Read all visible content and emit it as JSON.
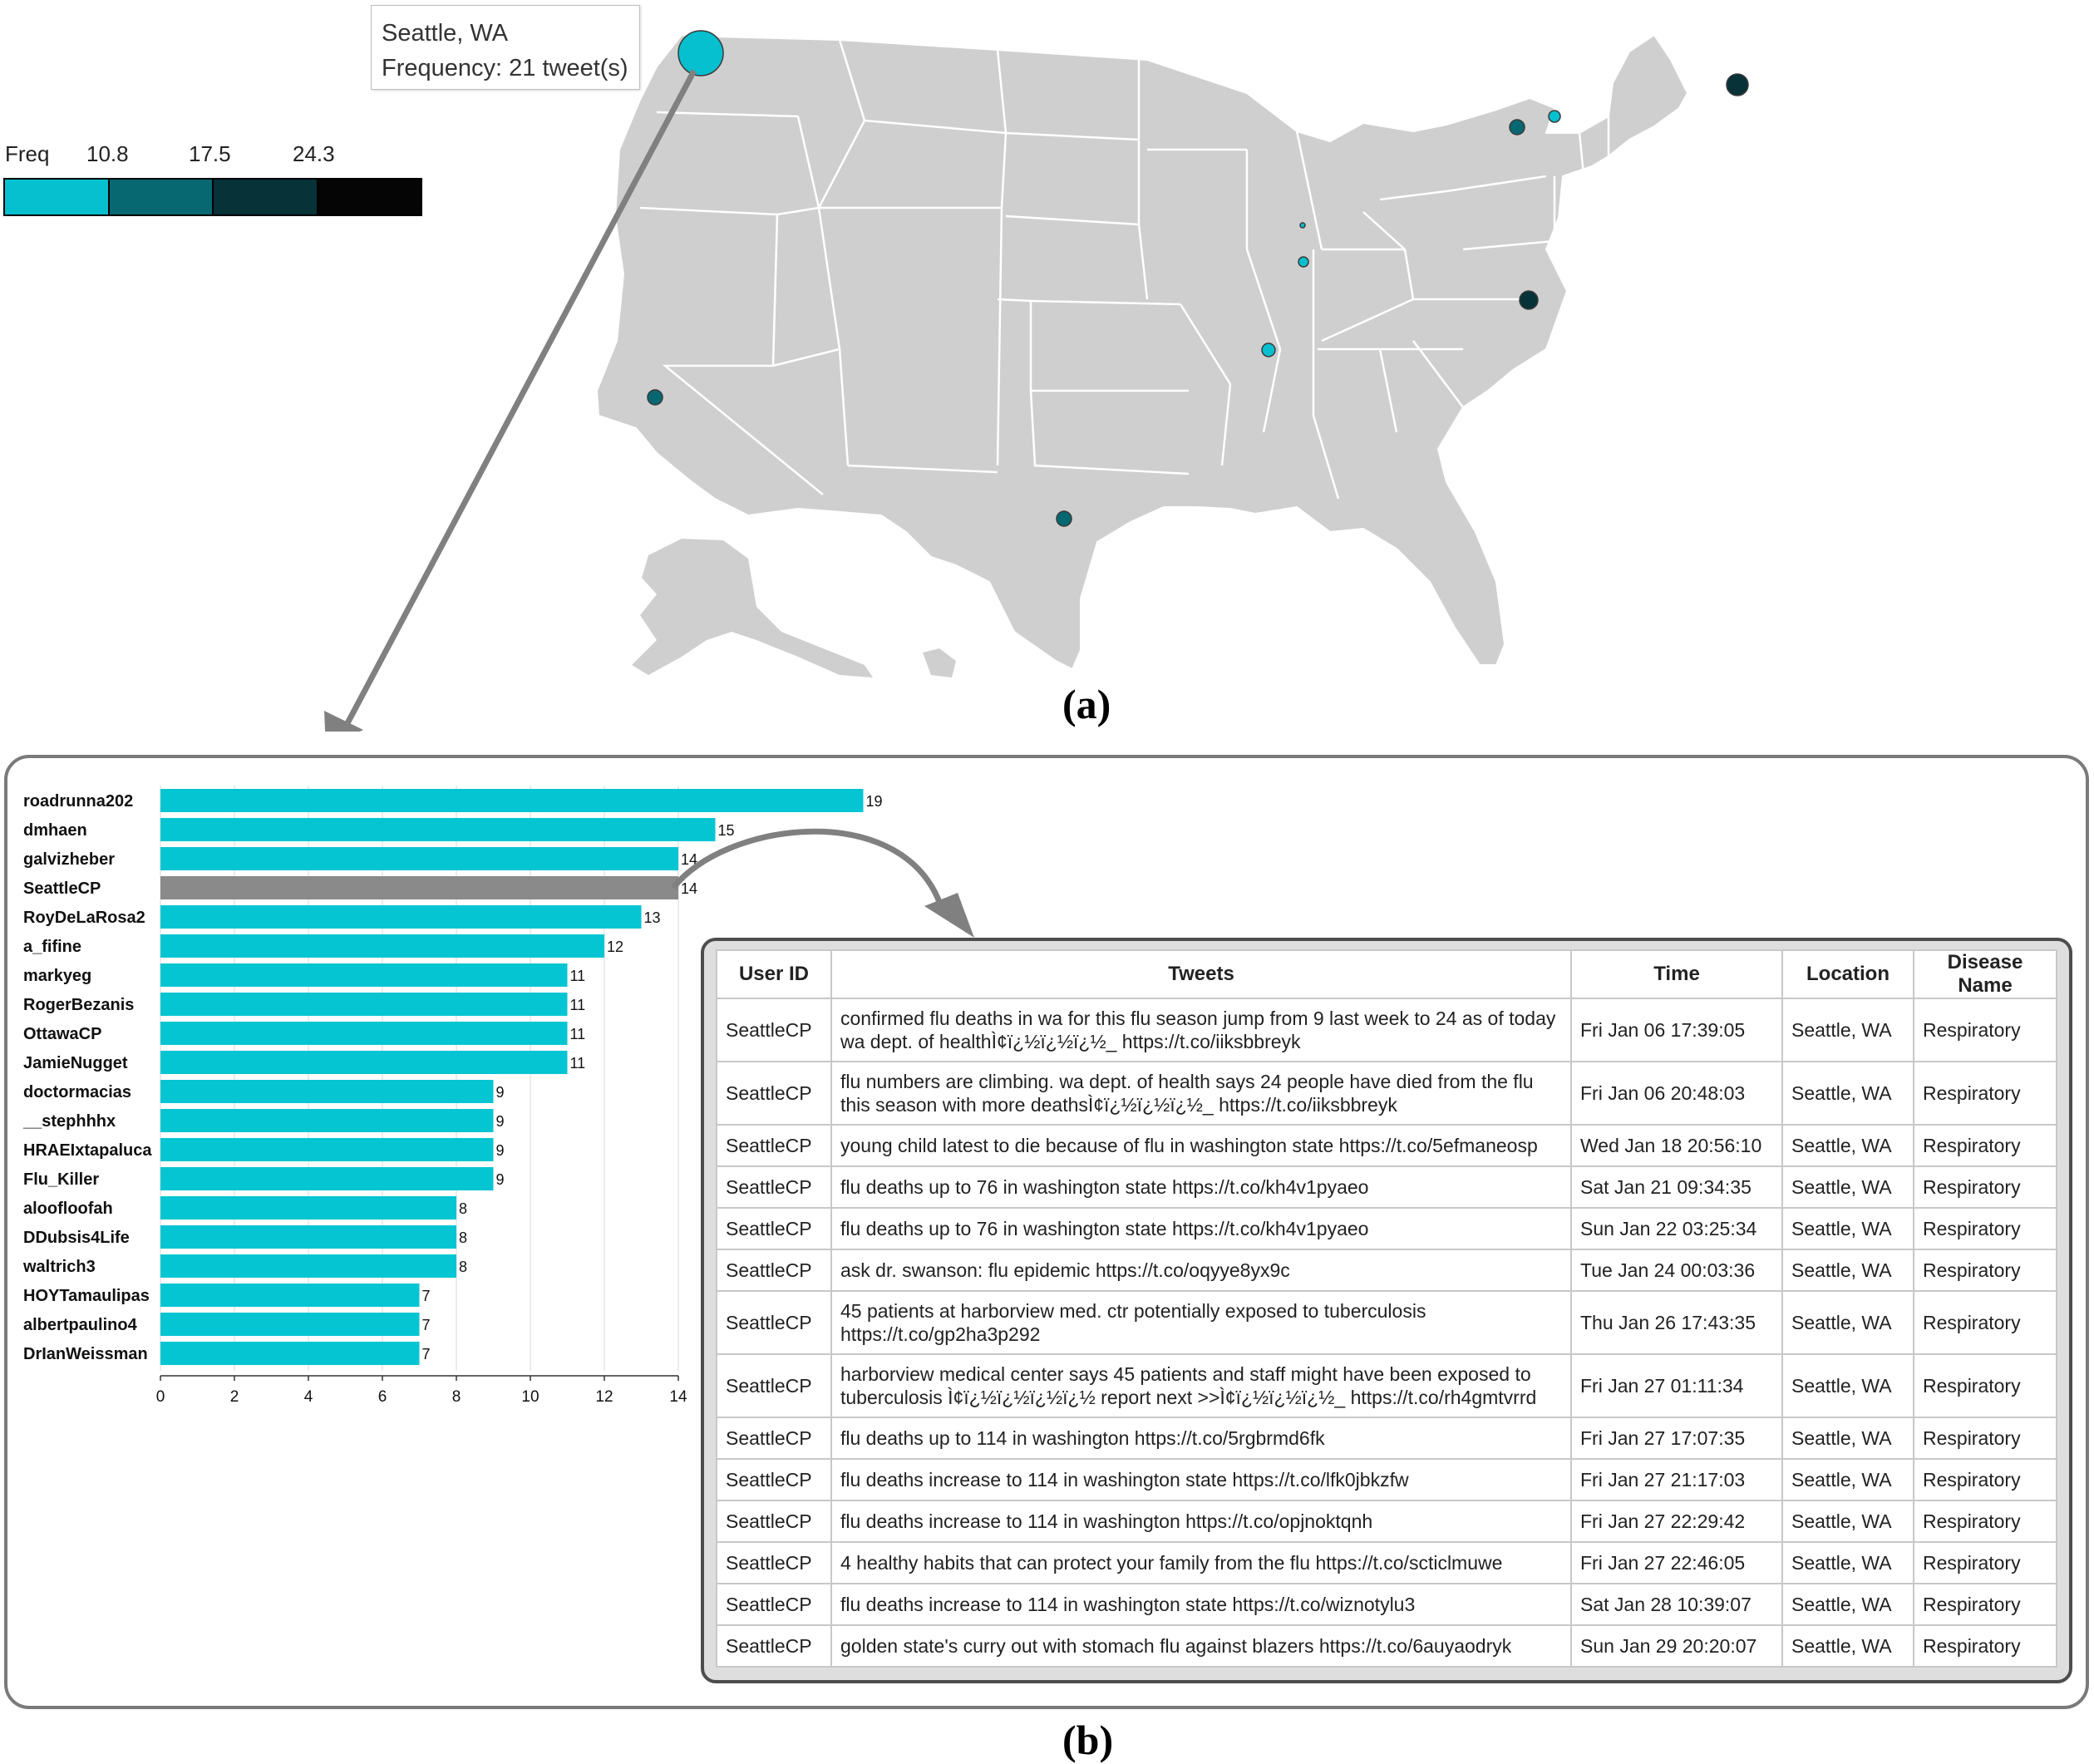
{
  "figure_labels": {
    "a": "(a)",
    "b": "(b)"
  },
  "tooltip": {
    "location": "Seattle, WA",
    "frequency": "Frequency: 21 tweet(s)"
  },
  "legend": {
    "title": "Freq",
    "ticks": [
      "10.8",
      "17.5",
      "24.3"
    ],
    "colors": [
      "#06bfcf",
      "#076871",
      "#073238",
      "#050505"
    ]
  },
  "map": {
    "land_color": "#cfcfcf",
    "border_color": "#ffffff",
    "markers": [
      {
        "name": "Seattle, WA",
        "level": 1,
        "highlighted": true
      },
      {
        "name": "Los Angeles area",
        "level": 2
      },
      {
        "name": "Texas",
        "level": 2
      },
      {
        "name": "St. Louis area",
        "level": 1
      },
      {
        "name": "Chicago area",
        "level": 1
      },
      {
        "name": "Milwaukee area",
        "level": 1
      },
      {
        "name": "Washington DC area",
        "level": 3
      },
      {
        "name": "New York (west)",
        "level": 2
      },
      {
        "name": "New York (north)",
        "level": 1
      },
      {
        "name": "Atlantic",
        "level": 3
      }
    ]
  },
  "chart_data": {
    "type": "bar",
    "orientation": "horizontal",
    "categories": [
      "roadrunna202",
      "dmhaen",
      "galvizheber",
      "SeattleCP",
      "RoyDeLaRosa2",
      "a_fifine",
      "markyeg",
      "RogerBezanis",
      "OttawaCP",
      "JamieNugget",
      "doctormacias",
      "__stephhhx",
      "HRAEIxtapaluca",
      "Flu_Killer",
      "aloofloofah",
      "DDubsis4Life",
      "waltrich3",
      "HOYTamaulipas",
      "albertpaulino4",
      "DrIanWeissman"
    ],
    "values": [
      19,
      15,
      14,
      14,
      13,
      12,
      11,
      11,
      11,
      11,
      9,
      9,
      9,
      9,
      8,
      8,
      8,
      7,
      7,
      7
    ],
    "data_labels": [
      "19",
      "15",
      "14",
      "14",
      "13",
      "12",
      "11",
      "11",
      "11",
      "11",
      "9",
      "9",
      "9",
      "9",
      "8",
      "8",
      "8",
      "7",
      "7",
      "7"
    ],
    "highlighted": "SeattleCP",
    "bar_color": "#06c5d2",
    "highlight_color": "#8a8a8a",
    "x_ticks": [
      0,
      2,
      4,
      6,
      8,
      10,
      12,
      14
    ],
    "x_tick_labels": [
      "0",
      "2",
      "4",
      "6",
      "8",
      "10",
      "12",
      "14"
    ],
    "xlim": [
      0,
      19
    ],
    "grid": true
  },
  "table": {
    "headers": [
      "User ID",
      "Tweets",
      "Time",
      "Location",
      "Disease Name"
    ],
    "rows": [
      {
        "user": "SeattleCP",
        "tweet": "confirmed flu deaths in wa for this flu season jump from 9 last week to 24 as of today wa dept. of healthÌ¢ï¿½ï¿½ï¿½_ https://t.co/iiksbbreyk",
        "time": "Fri Jan 06 17:39:05",
        "location": "Seattle, WA",
        "disease": "Respiratory"
      },
      {
        "user": "SeattleCP",
        "tweet": "flu numbers are climbing. wa dept. of health says 24 people have died from the flu this season with more deathsÌ¢ï¿½ï¿½ï¿½_ https://t.co/iiksbbreyk",
        "time": "Fri Jan 06 20:48:03",
        "location": "Seattle, WA",
        "disease": "Respiratory"
      },
      {
        "user": "SeattleCP",
        "tweet": "young child latest to die because of flu in washington state https://t.co/5efmaneosp",
        "time": "Wed Jan 18 20:56:10",
        "location": "Seattle, WA",
        "disease": "Respiratory"
      },
      {
        "user": "SeattleCP",
        "tweet": "flu deaths up to 76 in washington state https://t.co/kh4v1pyaeo",
        "time": "Sat Jan 21 09:34:35",
        "location": "Seattle, WA",
        "disease": "Respiratory"
      },
      {
        "user": "SeattleCP",
        "tweet": "flu deaths up to 76 in washington state https://t.co/kh4v1pyaeo",
        "time": "Sun Jan 22 03:25:34",
        "location": "Seattle, WA",
        "disease": "Respiratory"
      },
      {
        "user": "SeattleCP",
        "tweet": "ask dr. swanson: flu epidemic https://t.co/oqyye8yx9c",
        "time": "Tue Jan 24 00:03:36",
        "location": "Seattle, WA",
        "disease": "Respiratory"
      },
      {
        "user": "SeattleCP",
        "tweet": "45 patients at harborview med. ctr potentially exposed to tuberculosis https://t.co/gp2ha3p292",
        "time": "Thu Jan 26 17:43:35",
        "location": "Seattle, WA",
        "disease": "Respiratory"
      },
      {
        "user": "SeattleCP",
        "tweet": "harborview medical center says 45 patients and staff might have been exposed to tuberculosis Ì¢ï¿½ï¿½ï¿½ï¿½ report next >>Ì¢ï¿½ï¿½ï¿½_ https://t.co/rh4gmtvrrd",
        "time": "Fri Jan 27 01:11:34",
        "location": "Seattle, WA",
        "disease": "Respiratory"
      },
      {
        "user": "SeattleCP",
        "tweet": "flu deaths up to 114 in washington https://t.co/5rgbrmd6fk",
        "time": "Fri Jan 27 17:07:35",
        "location": "Seattle, WA",
        "disease": "Respiratory"
      },
      {
        "user": "SeattleCP",
        "tweet": "flu deaths increase to 114 in washington state https://t.co/lfk0jbkzfw",
        "time": "Fri Jan 27 21:17:03",
        "location": "Seattle, WA",
        "disease": "Respiratory"
      },
      {
        "user": "SeattleCP",
        "tweet": "flu deaths increase to 114 in washington https://t.co/opjnoktqnh",
        "time": "Fri Jan 27 22:29:42",
        "location": "Seattle, WA",
        "disease": "Respiratory"
      },
      {
        "user": "SeattleCP",
        "tweet": "4 healthy habits that can protect your family from the flu https://t.co/scticlmuwe",
        "time": "Fri Jan 27 22:46:05",
        "location": "Seattle, WA",
        "disease": "Respiratory"
      },
      {
        "user": "SeattleCP",
        "tweet": "flu deaths increase to 114 in washington state https://t.co/wiznotylu3",
        "time": "Sat Jan 28 10:39:07",
        "location": "Seattle, WA",
        "disease": "Respiratory"
      },
      {
        "user": "SeattleCP",
        "tweet": "golden state's curry out with stomach flu against blazers https://t.co/6auyaodryk",
        "time": "Sun Jan 29 20:20:07",
        "location": "Seattle, WA",
        "disease": "Respiratory"
      }
    ]
  }
}
